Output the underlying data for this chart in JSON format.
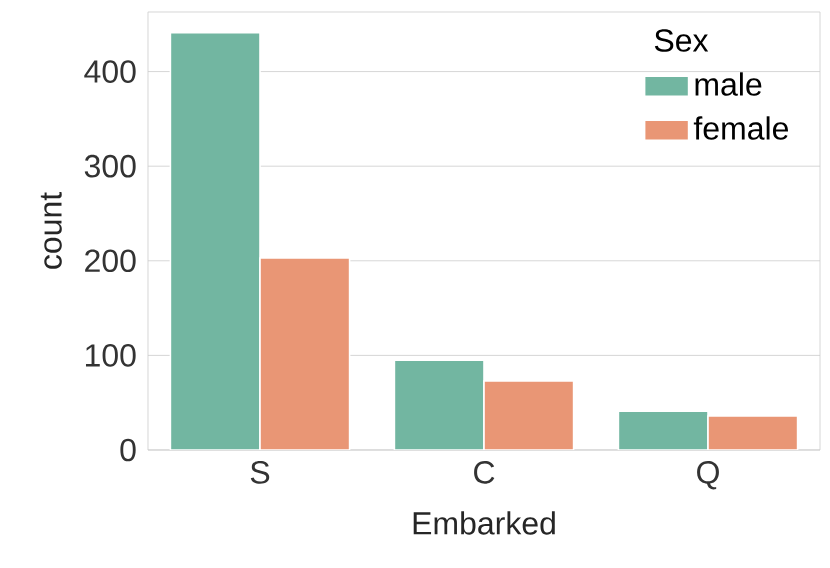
{
  "chart_data": {
    "type": "bar",
    "xlabel": "Embarked",
    "ylabel": "count",
    "legend_title": "Sex",
    "categories": [
      "S",
      "C",
      "Q"
    ],
    "series": [
      {
        "name": "male",
        "color": "#72b6a1",
        "values": [
          441,
          95,
          41
        ]
      },
      {
        "name": "female",
        "color": "#e99675",
        "values": [
          203,
          73,
          36
        ]
      }
    ],
    "ylim": [
      0,
      463
    ],
    "yticks": [
      0,
      100,
      200,
      300,
      400
    ],
    "grid": "y",
    "legend": "top right"
  }
}
